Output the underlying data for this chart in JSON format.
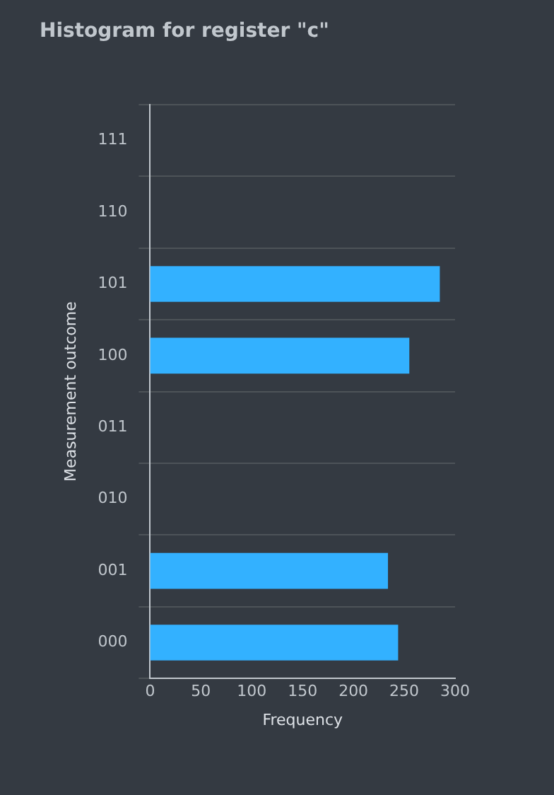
{
  "chart_data": {
    "type": "bar",
    "orientation": "horizontal",
    "title": "Histogram for register \"c\"",
    "xlabel": "Frequency",
    "ylabel": "Measurement outcome",
    "categories": [
      "111",
      "110",
      "101",
      "100",
      "011",
      "010",
      "001",
      "000"
    ],
    "values": [
      0,
      0,
      285,
      255,
      0,
      0,
      234,
      244
    ],
    "color": "#33b1ff",
    "xlim": [
      0,
      300
    ],
    "xticks": [
      0,
      50,
      100,
      150,
      200,
      250,
      300
    ],
    "grid": "y"
  }
}
